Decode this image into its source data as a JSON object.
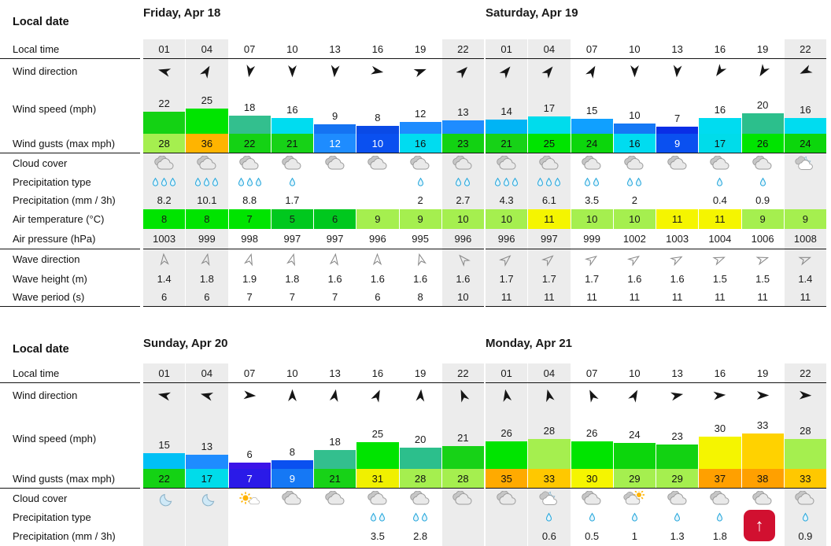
{
  "labels": {
    "local_date": "Local date",
    "local_time": "Local time",
    "wind_direction": "Wind direction",
    "wind_speed": "Wind speed (mph)",
    "wind_gusts": "Wind gusts (max mph)",
    "cloud_cover": "Cloud cover",
    "precipitation_type": "Precipitation type",
    "precipitation_amount": "Precipitation (mm / 3h)",
    "air_temperature": "Air temperature (°C)",
    "air_pressure": "Air pressure (hPa)",
    "wave_direction": "Wave direction",
    "wave_height": "Wave height (m)",
    "wave_period": "Wave period (s)"
  },
  "night_column_indices": [
    0,
    1,
    7
  ],
  "days": [
    {
      "date": "Friday, Apr 18",
      "times": [
        "01",
        "04",
        "07",
        "10",
        "13",
        "16",
        "19",
        "22"
      ],
      "wind_dir_deg": [
        285,
        30,
        190,
        180,
        185,
        100,
        70,
        45
      ],
      "wind_speed": [
        "22",
        "25",
        "18",
        "16",
        "9",
        "8",
        "12",
        "13"
      ],
      "wind_speed_colors": [
        "#14d214",
        "#00e400",
        "#33bf8e",
        "#00dcf0",
        "#1573f2",
        "#0a4ae6",
        "#1e8cff",
        "#1e8cff"
      ],
      "wind_gusts": [
        "28",
        "36",
        "22",
        "21",
        "12",
        "10",
        "16",
        "23"
      ],
      "gust_colors": [
        "#a5ef4f",
        "#ffb400",
        "#14d214",
        "#17d217",
        "#1e8cff",
        "#0a50f0",
        "#00dcf0",
        "#12d212"
      ],
      "gust_text_colors": [
        "#111",
        "#111",
        "#111",
        "#111",
        "#fff",
        "#fff",
        "#111",
        "#111"
      ],
      "cloud_icons": [
        "cloudy",
        "cloudy",
        "cloudy",
        "cloudy",
        "cloudy",
        "cloudy",
        "cloudy",
        "cloudy"
      ],
      "precip_drops": [
        3,
        3,
        3,
        1,
        0,
        0,
        1,
        2
      ],
      "precip_mm": [
        "8.2",
        "10.1",
        "8.8",
        "1.7",
        "",
        "",
        "2",
        "2.7"
      ],
      "air_temp": [
        "8",
        "8",
        "7",
        "5",
        "6",
        "9",
        "9",
        "10"
      ],
      "temp_colors": [
        "#00e400",
        "#00e400",
        "#00e400",
        "#00c81e",
        "#00c81e",
        "#a5ef4f",
        "#a5ef4f",
        "#a5ef4f"
      ],
      "air_pressure": [
        "1003",
        "999",
        "998",
        "997",
        "997",
        "996",
        "995",
        "996"
      ],
      "wave_dir_deg": [
        355,
        12,
        15,
        15,
        8,
        0,
        345,
        318
      ],
      "wave_height": [
        "1.4",
        "1.8",
        "1.9",
        "1.8",
        "1.6",
        "1.6",
        "1.6",
        "1.6"
      ],
      "wave_period": [
        "6",
        "6",
        "7",
        "7",
        "7",
        "6",
        "8",
        "10"
      ]
    },
    {
      "date": "Saturday, Apr 19",
      "times": [
        "01",
        "04",
        "07",
        "10",
        "13",
        "16",
        "19",
        "22"
      ],
      "wind_dir_deg": [
        40,
        40,
        30,
        180,
        185,
        215,
        212,
        245
      ],
      "wind_speed": [
        "14",
        "17",
        "15",
        "10",
        "7",
        "16",
        "20",
        "16"
      ],
      "wind_speed_colors": [
        "#00b4f5",
        "#00dcec",
        "#10a0ff",
        "#1578f5",
        "#0a2ee6",
        "#00dcf0",
        "#2cbf8c",
        "#00dcf0"
      ],
      "wind_gusts": [
        "21",
        "25",
        "24",
        "16",
        "9",
        "17",
        "26",
        "24"
      ],
      "gust_colors": [
        "#17d217",
        "#00e400",
        "#0cd60c",
        "#00dcf0",
        "#0a50f0",
        "#00dcea",
        "#00e400",
        "#0cd60c"
      ],
      "gust_text_colors": [
        "#111",
        "#111",
        "#111",
        "#111",
        "#fff",
        "#111",
        "#111",
        "#111"
      ],
      "cloud_icons": [
        "cloudy",
        "cloudy",
        "cloudy",
        "cloudy",
        "cloudy",
        "cloudy",
        "cloudy",
        "moon-cloud"
      ],
      "precip_drops": [
        3,
        3,
        2,
        2,
        0,
        1,
        1,
        0
      ],
      "precip_mm": [
        "4.3",
        "6.1",
        "3.5",
        "2",
        "",
        "0.4",
        "0.9",
        ""
      ],
      "air_temp": [
        "10",
        "11",
        "10",
        "10",
        "11",
        "11",
        "9",
        "9"
      ],
      "temp_colors": [
        "#a5ef4f",
        "#f5f500",
        "#a5ef4f",
        "#a5ef4f",
        "#f5f500",
        "#f5f500",
        "#a5ef4f",
        "#a5ef4f"
      ],
      "air_pressure": [
        "996",
        "997",
        "999",
        "1002",
        "1003",
        "1004",
        "1006",
        "1008"
      ],
      "wave_dir_deg": [
        48,
        50,
        55,
        55,
        62,
        68,
        72,
        70
      ],
      "wave_height": [
        "1.7",
        "1.7",
        "1.7",
        "1.6",
        "1.6",
        "1.5",
        "1.5",
        "1.4"
      ],
      "wave_period": [
        "11",
        "11",
        "11",
        "11",
        "11",
        "11",
        "11",
        "11"
      ]
    },
    {
      "date": "Sunday, Apr 20",
      "times": [
        "01",
        "04",
        "07",
        "10",
        "13",
        "16",
        "19",
        "22"
      ],
      "wind_dir_deg": [
        282,
        284,
        95,
        0,
        10,
        25,
        5,
        338
      ],
      "wind_speed": [
        "15",
        "13",
        "6",
        "8",
        "18",
        "25",
        "20",
        "21"
      ],
      "wind_speed_colors": [
        "#00c0f5",
        "#1e8cff",
        "#3c14e8",
        "#0a50f0",
        "#33bf8e",
        "#00e400",
        "#2cbf8c",
        "#17d217"
      ],
      "wind_gusts": [
        "22",
        "17",
        "7",
        "9",
        "21",
        "31",
        "28",
        "28"
      ],
      "gust_colors": [
        "#14d214",
        "#00dcea",
        "#2a1ae8",
        "#1578f5",
        "#17d217",
        "#f0f000",
        "#a5ef4f",
        "#a5ef4f"
      ],
      "gust_text_colors": [
        "#111",
        "#111",
        "#fff",
        "#fff",
        "#111",
        "#111",
        "#111",
        "#111"
      ],
      "cloud_icons": [
        "clear-night",
        "clear-night",
        "sun-small-cloud",
        "cloudy",
        "cloudy",
        "cloudy",
        "cloudy",
        "cloudy"
      ],
      "precip_drops": [
        0,
        0,
        0,
        0,
        0,
        2,
        2,
        0
      ],
      "precip_mm": [
        "",
        "",
        "",
        "",
        "",
        "3.5",
        "2.8",
        ""
      ]
    },
    {
      "date": "Monday, Apr 21",
      "times": [
        "01",
        "04",
        "07",
        "10",
        "13",
        "16",
        "19",
        "22"
      ],
      "wind_dir_deg": [
        350,
        346,
        335,
        28,
        78,
        85,
        90,
        92
      ],
      "wind_speed": [
        "26",
        "28",
        "26",
        "24",
        "23",
        "30",
        "33",
        "28"
      ],
      "wind_speed_colors": [
        "#00e400",
        "#a5ef4f",
        "#00e400",
        "#0cd60c",
        "#12d212",
        "#f5f500",
        "#ffd200",
        "#a5ef4f"
      ],
      "wind_gusts": [
        "35",
        "33",
        "30",
        "29",
        "29",
        "37",
        "38",
        "33"
      ],
      "gust_colors": [
        "#ffaa00",
        "#ffc800",
        "#f5f500",
        "#a5ef4f",
        "#a5ef4f",
        "#ffa000",
        "#ffa000",
        "#ffc800"
      ],
      "gust_text_colors": [
        "#111",
        "#111",
        "#111",
        "#111",
        "#111",
        "#111",
        "#111",
        "#111"
      ],
      "cloud_icons": [
        "cloudy",
        "moon-cloud",
        "cloudy",
        "cloud-sun",
        "cloudy",
        "cloudy",
        "cloudy",
        "cloudy"
      ],
      "precip_drops": [
        0,
        1,
        1,
        1,
        1,
        1,
        2,
        1
      ],
      "precip_mm": [
        "",
        "0.6",
        "0.5",
        "1",
        "1.3",
        "1.8",
        "",
        "0.9"
      ]
    }
  ],
  "scroll_top": {
    "arrow": "↑"
  }
}
